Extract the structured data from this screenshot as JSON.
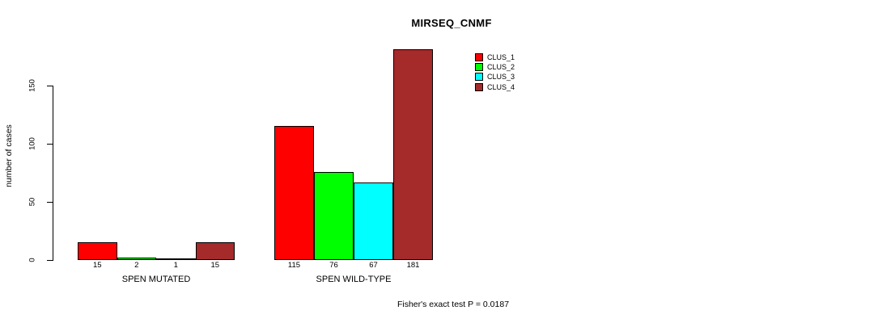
{
  "chart_data": {
    "type": "bar",
    "title": "MIRSEQ_CNMF",
    "ylabel": "number of cases",
    "xlabel": "",
    "ylim": [
      0,
      150
    ],
    "yticks": [
      0,
      50,
      100,
      150
    ],
    "grid": false,
    "legend_position": "top-right",
    "categories": [
      "SPEN MUTATED",
      "SPEN WILD-TYPE"
    ],
    "series": [
      {
        "name": "CLUS_1",
        "color": "#ff0000",
        "values": [
          15,
          115
        ]
      },
      {
        "name": "CLUS_2",
        "color": "#00ff00",
        "values": [
          2,
          76
        ]
      },
      {
        "name": "CLUS_3",
        "color": "#00ffff",
        "values": [
          1,
          67
        ]
      },
      {
        "name": "CLUS_4",
        "color": "#a52a2a",
        "values": [
          15,
          181
        ]
      }
    ],
    "bar_value_labels": true,
    "annotation": "Fisher's exact test P = 0.0187"
  }
}
